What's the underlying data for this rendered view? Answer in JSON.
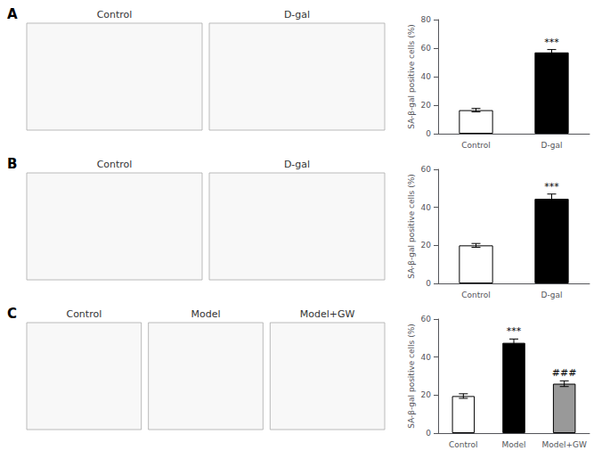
{
  "chart_data": [
    {
      "type": "image",
      "title": "Control",
      "color": "#f8f8f8",
      "annotations": [
        {
          "text": "A"
        }
      ]
    },
    {
      "type": "image",
      "title": "D-gal",
      "color": "#f8f8f8"
    },
    {
      "type": "bar",
      "categories": [
        "Control",
        "D-gal"
      ],
      "values": [
        16.5,
        57.0
      ],
      "errors": [
        1.2,
        2.0
      ],
      "colors": [
        "white",
        "black"
      ],
      "ylabel": "SA-β-gal positive cells (%)",
      "ylim": [
        0,
        80
      ],
      "yticks": [
        0,
        20,
        40,
        60,
        80
      ],
      "grid": false,
      "annotations": [
        {
          "text": "***",
          "category": "D-gal"
        }
      ]
    },
    {
      "type": "image",
      "title": "Control",
      "color": "#f8f8f8",
      "annotations": [
        {
          "text": "B"
        }
      ]
    },
    {
      "type": "image",
      "title": "D-gal",
      "color": "#f8f8f8"
    },
    {
      "type": "bar",
      "categories": [
        "Control",
        "D-gal"
      ],
      "values": [
        20.0,
        44.5
      ],
      "errors": [
        1.0,
        2.5
      ],
      "colors": [
        "white",
        "black"
      ],
      "ylabel": "SA-β-gal positive cells (%)",
      "ylim": [
        0,
        60
      ],
      "yticks": [
        0,
        20,
        40,
        60
      ],
      "grid": false,
      "annotations": [
        {
          "text": "***",
          "category": "D-gal"
        }
      ]
    },
    {
      "type": "image",
      "title": "Control",
      "color": "#f8f8f8",
      "annotations": [
        {
          "text": "C"
        }
      ]
    },
    {
      "type": "image",
      "title": "Model",
      "color": "#f8f8f8"
    },
    {
      "type": "image",
      "title": "Model+GW",
      "color": "#f8f8f8"
    },
    {
      "type": "bar",
      "categories": [
        "Control",
        "Model",
        "Model+GW"
      ],
      "values": [
        19.5,
        47.5,
        26.0
      ],
      "errors": [
        1.2,
        2.0,
        1.5
      ],
      "colors": [
        "white",
        "black",
        "#999999"
      ],
      "ylabel": "SA-β-gal positive cells (%)",
      "ylim": [
        0,
        60
      ],
      "yticks": [
        0,
        20,
        40,
        60
      ],
      "grid": false,
      "annotations": [
        {
          "text": "***",
          "category": "Model"
        },
        {
          "text": "###",
          "category": "Model+GW"
        }
      ]
    }
  ]
}
